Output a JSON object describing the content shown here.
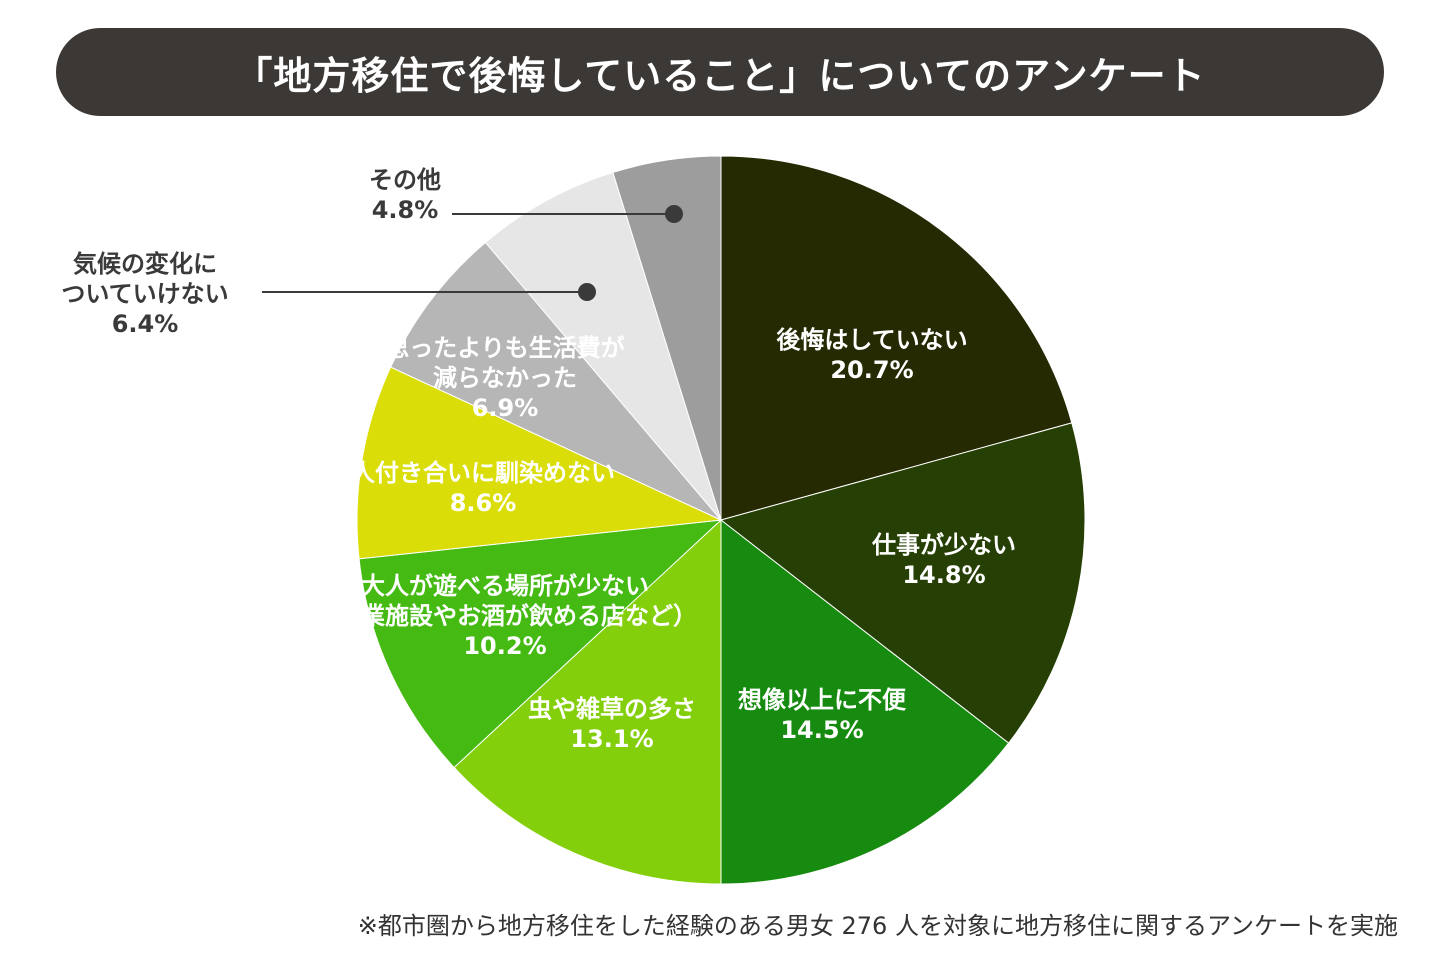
{
  "title": "「地方移住で後悔していること」についてのアンケート",
  "footnote": "※都市圏から地方移住をした経験のある男女 276 人を対象に地方移住に関するアンケートを実施",
  "chart_data": {
    "type": "pie",
    "title": "「地方移住で後悔していること」についてのアンケート",
    "start": "12 o'clock",
    "direction": "clockwise",
    "slices": [
      {
        "label_lines": [
          "後悔はしていない"
        ],
        "value_text": "20.7%",
        "value": 20.7,
        "color": "#262a03",
        "text_color": "#ffffff",
        "label_style": "inside"
      },
      {
        "label_lines": [
          "仕事が少ない"
        ],
        "value_text": "14.8%",
        "value": 14.8,
        "color": "#253f04",
        "text_color": "#ffffff",
        "label_style": "inside"
      },
      {
        "label_lines": [
          "想像以上に不便"
        ],
        "value_text": "14.5%",
        "value": 14.5,
        "color": "#178b0f",
        "text_color": "#ffffff",
        "label_style": "inside"
      },
      {
        "label_lines": [
          "虫や雑草の多さ"
        ],
        "value_text": "13.1%",
        "value": 13.1,
        "color": "#84cf0c",
        "text_color": "#ffffff",
        "label_style": "inside"
      },
      {
        "label_lines": [
          "大人が遊べる場所が少ない",
          "（商業施設やお酒が飲める店など）"
        ],
        "value_text": "10.2%",
        "value": 10.2,
        "color": "#44ba12",
        "text_color": "#ffffff",
        "label_style": "inside"
      },
      {
        "label_lines": [
          "人付き合いに馴染めない"
        ],
        "value_text": "8.6%",
        "value": 8.6,
        "color": "#dbdd08",
        "text_color": "#ffffff",
        "label_style": "inside"
      },
      {
        "label_lines": [
          "思ったよりも生活費が",
          "減らなかった"
        ],
        "value_text": "6.9%",
        "value": 6.9,
        "color": "#b6b6b6",
        "text_color": "#ffffff",
        "label_style": "inside"
      },
      {
        "label_lines": [
          "気候の変化に",
          "ついていけない"
        ],
        "value_text": "6.4%",
        "value": 6.4,
        "color": "#e6e6e6",
        "text_color": "#3a3a3a",
        "label_style": "leader"
      },
      {
        "label_lines": [
          "その他"
        ],
        "value_text": "4.8%",
        "value": 4.8,
        "color": "#9d9d9d",
        "text_color": "#3a3a3a",
        "label_style": "leader"
      }
    ]
  }
}
